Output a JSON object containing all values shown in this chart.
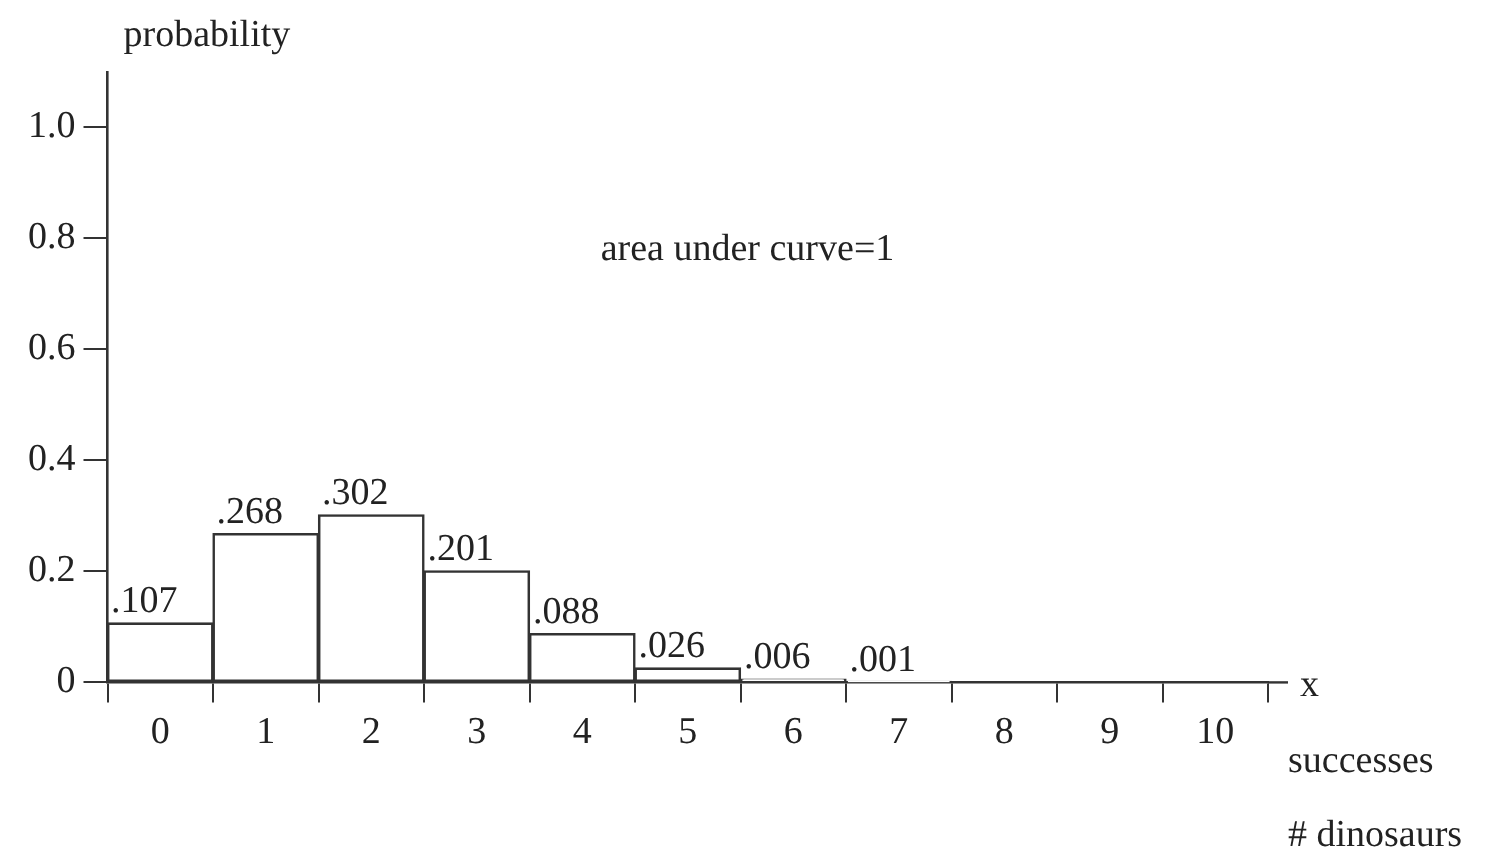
{
  "chart_data": {
    "type": "bar",
    "xlabel": "x",
    "ylabel": "probability",
    "annotations": [
      "area under curve=1",
      "successes",
      "# dinosaurs"
    ],
    "categories": [
      "0",
      "1",
      "2",
      "3",
      "4",
      "5",
      "6",
      "7",
      "8",
      "9",
      "10"
    ],
    "values": [
      0.107,
      0.268,
      0.302,
      0.201,
      0.088,
      0.026,
      0.006,
      0.001,
      0,
      0,
      0
    ],
    "value_labels": [
      ".107",
      ".268",
      ".302",
      ".201",
      ".088",
      ".026",
      ".006",
      ".001",
      null,
      null,
      null
    ],
    "color": "#ffffff",
    "ylim": [
      0,
      1.1
    ],
    "yticks": [
      0,
      0.2,
      0.4,
      0.6,
      0.8,
      {
        "value": 1,
        "label": "1.0"
      }
    ],
    "grid": false,
    "legend": false
  }
}
